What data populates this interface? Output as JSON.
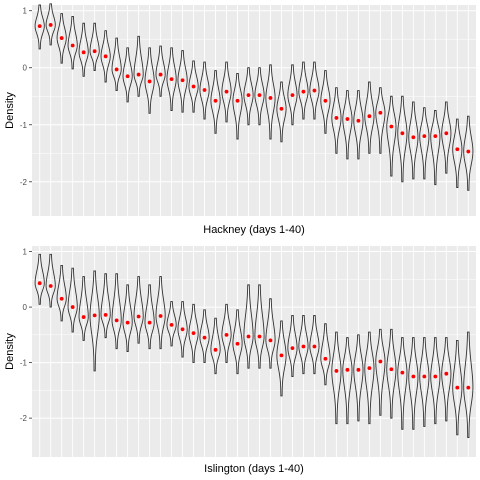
{
  "colors": {
    "panel_background": "#ebebeb",
    "grid_major": "#ffffff",
    "violin_stroke": "#333333",
    "point": "#ff0000"
  },
  "chart_data": [
    {
      "type": "violin",
      "xlabel": "Hackney (days 1-40)",
      "ylabel": "Density",
      "ylim": [
        -2.6,
        1.1
      ],
      "yticks": [
        1,
        0,
        -1,
        -2
      ],
      "ytick_labels": [
        "1",
        "0",
        "-1",
        "-2"
      ],
      "x_tick_labels_shown": false,
      "grid": true,
      "days": [
        1,
        2,
        3,
        4,
        5,
        6,
        7,
        8,
        9,
        10,
        11,
        12,
        13,
        14,
        15,
        16,
        17,
        18,
        19,
        20,
        21,
        22,
        23,
        24,
        25,
        26,
        27,
        28,
        29,
        30,
        31,
        32,
        33,
        34,
        35,
        36,
        37,
        38,
        39,
        40
      ],
      "point_values": [
        0.73,
        0.75,
        0.52,
        0.39,
        0.27,
        0.29,
        0.2,
        -0.03,
        -0.15,
        -0.12,
        -0.24,
        -0.12,
        -0.2,
        -0.22,
        -0.33,
        -0.39,
        -0.58,
        -0.42,
        -0.58,
        -0.48,
        -0.48,
        -0.53,
        -0.72,
        -0.48,
        -0.42,
        -0.4,
        -0.58,
        -0.88,
        -0.9,
        -0.93,
        -0.85,
        -0.79,
        -1.03,
        -1.15,
        -1.22,
        -1.2,
        -1.2,
        -1.15,
        -1.43,
        -1.47
      ],
      "ranges": [
        [
          0.33,
          1.1
        ],
        [
          0.4,
          1.12
        ],
        [
          0.08,
          0.95
        ],
        [
          -0.02,
          0.9
        ],
        [
          -0.15,
          0.78
        ],
        [
          -0.05,
          0.78
        ],
        [
          -0.25,
          0.65
        ],
        [
          -0.4,
          0.52
        ],
        [
          -0.6,
          0.35
        ],
        [
          -0.5,
          0.55
        ],
        [
          -0.8,
          0.35
        ],
        [
          -0.5,
          0.38
        ],
        [
          -0.75,
          0.35
        ],
        [
          -0.78,
          0.3
        ],
        [
          -0.78,
          0.12
        ],
        [
          -0.9,
          0.1
        ],
        [
          -1.15,
          -0.05
        ],
        [
          -0.95,
          0.1
        ],
        [
          -1.25,
          -0.1
        ],
        [
          -1.0,
          0.0
        ],
        [
          -1.0,
          0.0
        ],
        [
          -1.25,
          0.05
        ],
        [
          -1.3,
          -0.25
        ],
        [
          -1.0,
          0.05
        ],
        [
          -0.9,
          0.1
        ],
        [
          -0.9,
          0.1
        ],
        [
          -1.15,
          -0.05
        ],
        [
          -1.5,
          -0.35
        ],
        [
          -1.6,
          -0.4
        ],
        [
          -1.6,
          -0.4
        ],
        [
          -1.5,
          -0.25
        ],
        [
          -1.5,
          -0.35
        ],
        [
          -1.9,
          -0.5
        ],
        [
          -2.0,
          -0.5
        ],
        [
          -1.95,
          -0.6
        ],
        [
          -1.95,
          -0.7
        ],
        [
          -2.05,
          -0.75
        ],
        [
          -1.85,
          -0.6
        ],
        [
          -2.1,
          -0.9
        ],
        [
          -2.15,
          -0.85
        ]
      ]
    },
    {
      "type": "violin",
      "xlabel": "Islington (days 1-40)",
      "ylabel": "Density",
      "ylim": [
        -2.7,
        1.1
      ],
      "yticks": [
        1,
        0,
        -1,
        -2
      ],
      "ytick_labels": [
        "1",
        "0",
        "-1",
        "-2"
      ],
      "x_tick_labels_shown": false,
      "grid": true,
      "days": [
        1,
        2,
        3,
        4,
        5,
        6,
        7,
        8,
        9,
        10,
        11,
        12,
        13,
        14,
        15,
        16,
        17,
        18,
        19,
        20,
        21,
        22,
        23,
        24,
        25,
        26,
        27,
        28,
        29,
        30,
        31,
        32,
        33,
        34,
        35,
        36,
        37,
        38,
        39,
        40
      ],
      "point_values": [
        0.43,
        0.38,
        0.15,
        0.0,
        -0.18,
        -0.15,
        -0.14,
        -0.24,
        -0.28,
        -0.17,
        -0.28,
        -0.16,
        -0.32,
        -0.4,
        -0.47,
        -0.55,
        -0.77,
        -0.5,
        -0.66,
        -0.53,
        -0.53,
        -0.6,
        -0.87,
        -0.74,
        -0.71,
        -0.71,
        -0.93,
        -1.15,
        -1.13,
        -1.13,
        -1.1,
        -0.98,
        -1.12,
        -1.18,
        -1.25,
        -1.25,
        -1.25,
        -1.2,
        -1.45,
        -1.45
      ],
      "ranges": [
        [
          0.05,
          0.95
        ],
        [
          0.0,
          0.95
        ],
        [
          -0.25,
          0.75
        ],
        [
          -0.45,
          0.7
        ],
        [
          -0.6,
          0.55
        ],
        [
          -1.15,
          0.65
        ],
        [
          -0.55,
          0.6
        ],
        [
          -0.75,
          0.6
        ],
        [
          -0.8,
          0.4
        ],
        [
          -0.65,
          0.55
        ],
        [
          -0.75,
          0.4
        ],
        [
          -0.75,
          0.55
        ],
        [
          -0.7,
          0.1
        ],
        [
          -0.9,
          0.1
        ],
        [
          -1.0,
          0.05
        ],
        [
          -1.0,
          -0.05
        ],
        [
          -1.2,
          -0.2
        ],
        [
          -1.0,
          0.05
        ],
        [
          -1.2,
          -0.05
        ],
        [
          -1.1,
          0.4
        ],
        [
          -1.1,
          0.4
        ],
        [
          -1.1,
          0.15
        ],
        [
          -1.6,
          -0.25
        ],
        [
          -1.25,
          -0.15
        ],
        [
          -1.2,
          -0.15
        ],
        [
          -1.2,
          -0.15
        ],
        [
          -1.4,
          -0.3
        ],
        [
          -2.1,
          -0.45
        ],
        [
          -2.1,
          -0.55
        ],
        [
          -2.05,
          -0.5
        ],
        [
          -2.1,
          -0.45
        ],
        [
          -1.95,
          -0.4
        ],
        [
          -2.0,
          -0.4
        ],
        [
          -2.2,
          -0.55
        ],
        [
          -2.2,
          -0.55
        ],
        [
          -2.15,
          -0.55
        ],
        [
          -2.1,
          -0.55
        ],
        [
          -2.05,
          -0.55
        ],
        [
          -2.3,
          -0.6
        ],
        [
          -2.35,
          -0.45
        ]
      ]
    }
  ]
}
